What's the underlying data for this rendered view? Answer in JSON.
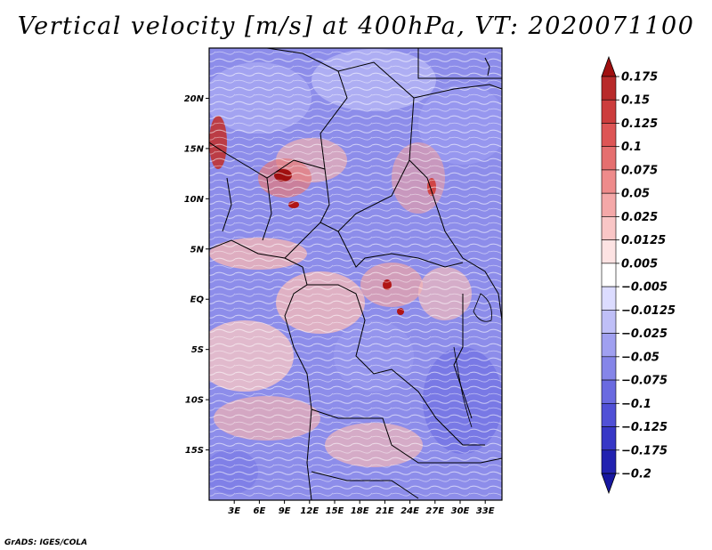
{
  "title": "Vertical velocity [m/s] at 400hPa, VT: 2020071100",
  "credit": "GrADS: IGES/COLA",
  "lat_ticks": [
    "20N",
    "15N",
    "10N",
    "5N",
    "EQ",
    "5S",
    "10S",
    "15S"
  ],
  "lon_ticks": [
    "3E",
    "6E",
    "9E",
    "12E",
    "15E",
    "18E",
    "21E",
    "24E",
    "27E",
    "30E",
    "33E"
  ],
  "map_extent": {
    "lon_min": 0,
    "lon_max": 35,
    "lat_min": -20,
    "lat_max": 25
  },
  "colorbar": {
    "levels": [
      "0.175",
      "0.15",
      "0.125",
      "0.1",
      "0.075",
      "0.05",
      "0.025",
      "0.0125",
      "0.005",
      "-0.005",
      "-0.0125",
      "-0.025",
      "-0.05",
      "-0.075",
      "-0.1",
      "-0.125",
      "-0.175",
      "-0.2"
    ],
    "colors": [
      "#a01010",
      "#b82a2a",
      "#cc3d3d",
      "#dd5555",
      "#e56f6f",
      "#ee8b8b",
      "#f4a8a8",
      "#f9c6c6",
      "#fde3e3",
      "#ffffff",
      "#dcdcff",
      "#bfbff7",
      "#a0a0f0",
      "#8585e8",
      "#6a6ae0",
      "#5050d6",
      "#3737c6",
      "#2222b0",
      "#1717a0"
    ]
  },
  "colors": {
    "positive": "#e06060",
    "negative": "#6c6ce0",
    "neutral": "#ffffff",
    "border": "#000000"
  }
}
